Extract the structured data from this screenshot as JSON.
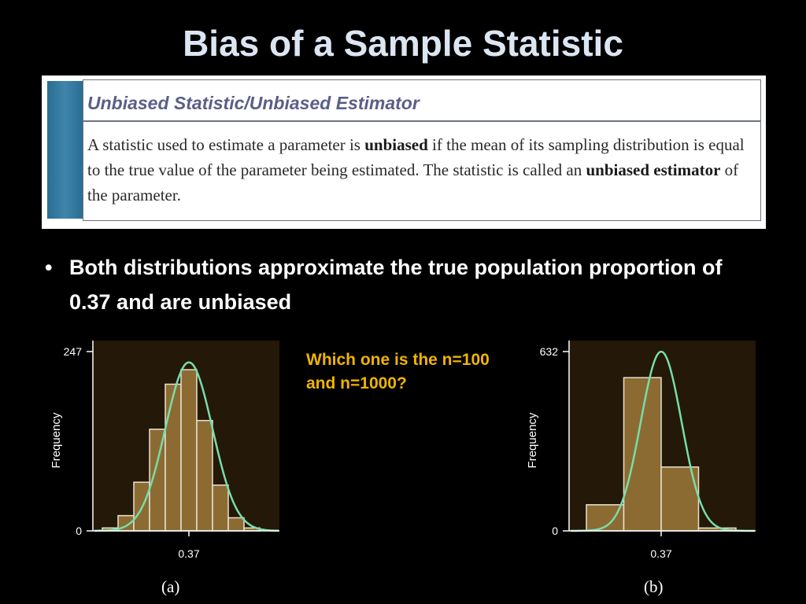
{
  "title": "Bias of a Sample Statistic",
  "definition": {
    "heading": "Unbiased Statistic/Unbiased Estimator",
    "body_parts": [
      "A statistic used to estimate a parameter is ",
      "unbiased",
      " if the mean of its sampling distribution is equal to the true value of the parameter being estimated. The statistic is called an ",
      "unbiased estimator",
      " of the parameter."
    ]
  },
  "bullet": {
    "marker": "•",
    "text": "Both distributions approximate the true population proportion of 0.37 and are unbiased"
  },
  "question": "Which one is the n=100 and n=1000?",
  "colors": {
    "background": "#000000",
    "title": "#dce6f2",
    "question": "#f0b400",
    "bar_fill": "#8c6b32",
    "bar_stroke": "#e8e2d0",
    "curve": "#78dcaa",
    "plot_bg": "#241808",
    "definition_heading": "#5a5f88"
  },
  "chart_data": [
    {
      "type": "bar",
      "panel": "(a)",
      "ylabel": "Frequency",
      "y_ticks": [
        "0",
        "247"
      ],
      "x_tick": "0.37",
      "ylim": [
        0,
        247
      ],
      "bins": 11,
      "mean_bin": 5,
      "values": [
        4,
        21,
        67,
        140,
        202,
        222,
        152,
        63,
        18,
        4,
        0
      ],
      "overlay": "normal curve"
    },
    {
      "type": "bar",
      "panel": "(b)",
      "ylabel": "Frequency",
      "y_ticks": [
        "0",
        "632"
      ],
      "x_tick": "0.37",
      "ylim": [
        0,
        632
      ],
      "bins": 5,
      "mean_bin": 1.5,
      "values": [
        92,
        540,
        225,
        10,
        0
      ],
      "overlay": "normal curve"
    }
  ]
}
